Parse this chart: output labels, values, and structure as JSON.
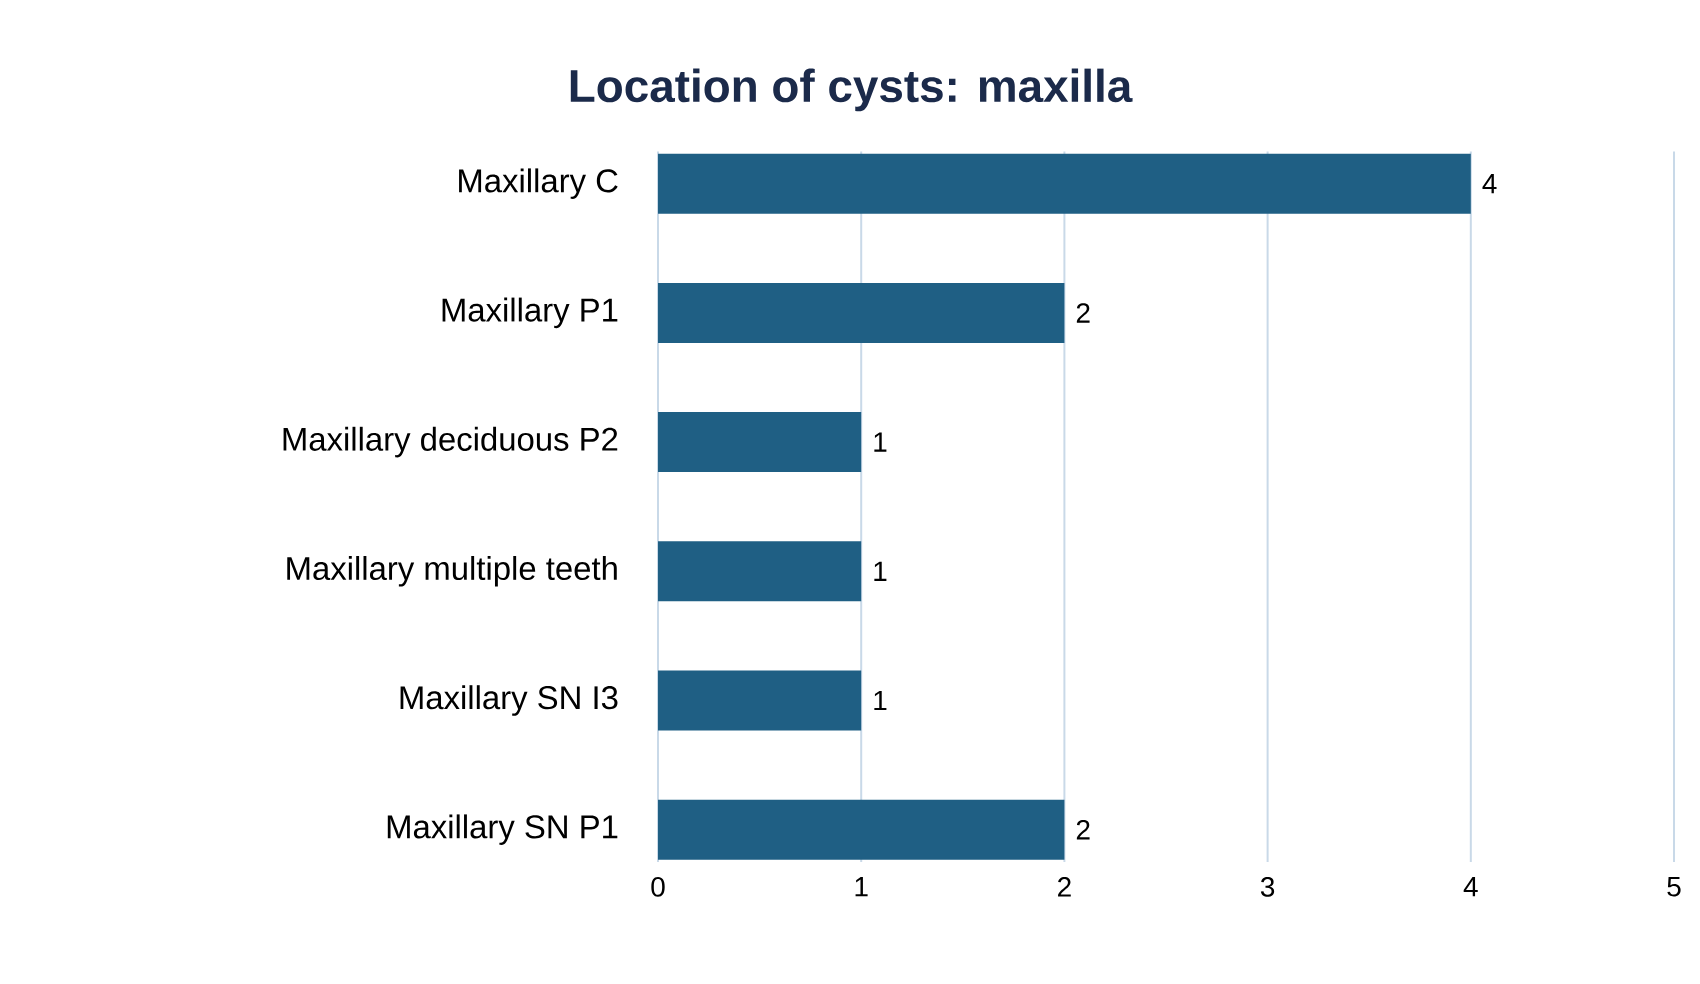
{
  "chart_data": {
    "type": "bar",
    "orientation": "horizontal",
    "title": "Location of cysts: maxilla",
    "categories": [
      "Maxillary C",
      "Maxillary P1",
      "Maxillary deciduous P2",
      "Maxillary multiple teeth",
      "Maxillary SN I3",
      "Maxillary SN P1"
    ],
    "values": [
      4,
      2,
      1,
      1,
      1,
      2
    ],
    "color": "#1f5f84",
    "xlim": [
      0,
      5
    ],
    "xticks": [
      0,
      1,
      2,
      3,
      4,
      5
    ],
    "grid": "x",
    "data_labels": true
  }
}
